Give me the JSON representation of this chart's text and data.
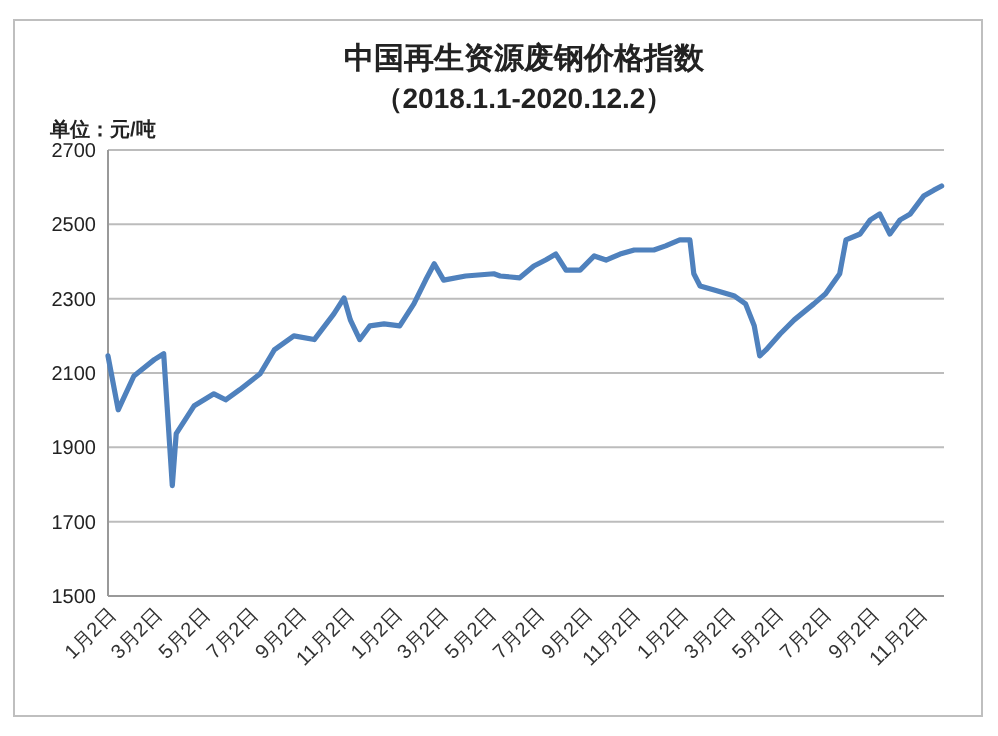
{
  "chart_data": {
    "type": "line",
    "title": "中国再生资源废钢价格指数",
    "subtitle": "（2018.1.1-2020.12.2）",
    "ylabel": "单位：元/吨",
    "x": [
      "2018-01-01",
      "2018-01-14",
      "2018-02-03",
      "2018-03-01",
      "2018-03-13",
      "2018-03-24",
      "2018-03-29",
      "2018-04-21",
      "2018-05-16",
      "2018-05-31",
      "2018-06-18",
      "2018-07-14",
      "2018-08-01",
      "2018-08-26",
      "2018-09-21",
      "2018-10-16",
      "2018-10-29",
      "2018-11-06",
      "2018-11-18",
      "2018-12-01",
      "2018-12-19",
      "2019-01-08",
      "2019-01-26",
      "2019-02-10",
      "2019-02-21",
      "2019-03-05",
      "2019-04-02",
      "2019-05-08",
      "2019-05-16",
      "2019-06-10",
      "2019-06-28",
      "2019-07-13",
      "2019-07-26",
      "2019-08-08",
      "2019-08-26",
      "2019-09-13",
      "2019-09-28",
      "2019-10-16",
      "2019-11-03",
      "2019-11-28",
      "2019-12-13",
      "2019-12-31",
      "2020-01-13",
      "2020-01-18",
      "2020-01-26",
      "2020-02-13",
      "2020-03-09",
      "2020-03-24",
      "2020-04-04",
      "2020-04-11",
      "2020-04-19",
      "2020-05-07",
      "2020-05-25",
      "2020-06-19",
      "2020-07-04",
      "2020-07-22",
      "2020-07-30",
      "2020-08-17",
      "2020-08-30",
      "2020-09-11",
      "2020-09-24",
      "2020-10-07",
      "2020-10-20",
      "2020-11-06",
      "2020-11-19",
      "2020-11-29"
    ],
    "series": [
      {
        "color": "#4f81bd",
        "values": [
          2146,
          2001,
          2092,
          2136,
          2152,
          1797,
          1937,
          2012,
          2044,
          2028,
          2055,
          2098,
          2162,
          2200,
          2190,
          2259,
          2302,
          2243,
          2190,
          2227,
          2232,
          2227,
          2286,
          2350,
          2394,
          2350,
          2361,
          2367,
          2361,
          2356,
          2388,
          2404,
          2420,
          2377,
          2377,
          2415,
          2404,
          2420,
          2431,
          2431,
          2442,
          2458,
          2458,
          2367,
          2334,
          2323,
          2308,
          2286,
          2227,
          2146,
          2162,
          2205,
          2243,
          2286,
          2313,
          2367,
          2458,
          2474,
          2512,
          2528,
          2474,
          2512,
          2528,
          2576,
          2592,
          2603
        ]
      }
    ],
    "xlim": [
      "2018-01-01",
      "2020-12-02"
    ],
    "xticks": [
      {
        "value": "2018-01-02",
        "label": "1月2日"
      },
      {
        "value": "2018-03-02",
        "label": "3月2日"
      },
      {
        "value": "2018-05-02",
        "label": "5月2日"
      },
      {
        "value": "2018-07-02",
        "label": "7月2日"
      },
      {
        "value": "2018-09-02",
        "label": "9月2日"
      },
      {
        "value": "2018-11-02",
        "label": "11月2日"
      },
      {
        "value": "2019-01-02",
        "label": "1月2日"
      },
      {
        "value": "2019-03-02",
        "label": "3月2日"
      },
      {
        "value": "2019-05-02",
        "label": "5月2日"
      },
      {
        "value": "2019-07-02",
        "label": "7月2日"
      },
      {
        "value": "2019-09-02",
        "label": "9月2日"
      },
      {
        "value": "2019-11-02",
        "label": "11月2日"
      },
      {
        "value": "2020-01-02",
        "label": "1月2日"
      },
      {
        "value": "2020-03-02",
        "label": "3月2日"
      },
      {
        "value": "2020-05-02",
        "label": "5月2日"
      },
      {
        "value": "2020-07-02",
        "label": "7月2日"
      },
      {
        "value": "2020-09-02",
        "label": "9月2日"
      },
      {
        "value": "2020-11-02",
        "label": "11月2日"
      }
    ],
    "ylim": [
      1500,
      2700
    ],
    "yticks": [
      1500,
      1700,
      1900,
      2100,
      2300,
      2500,
      2700
    ],
    "grid": "y",
    "marker": "none",
    "line_style": "solid"
  }
}
